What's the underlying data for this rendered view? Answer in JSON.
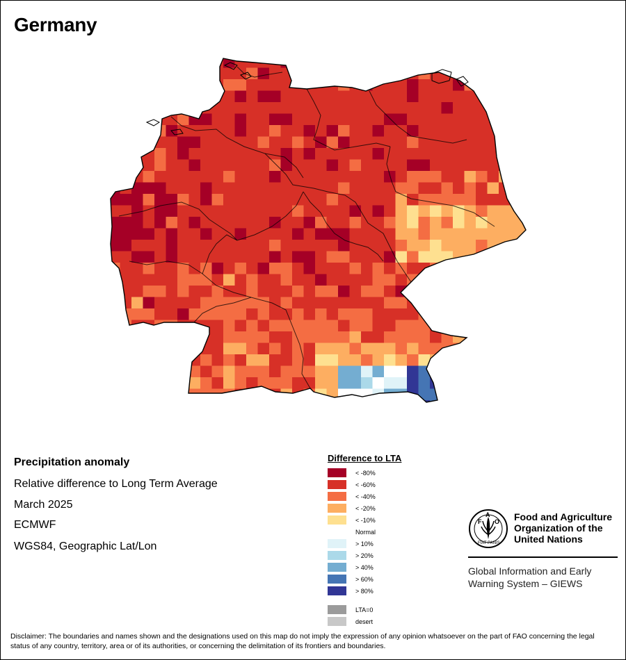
{
  "map_title": "Germany",
  "info": {
    "title": "Precipitation anomaly",
    "subtitle": "Relative difference to Long Term Average",
    "period": "March 2025",
    "model": "ECMWF",
    "projection": "WGS84, Geographic Lat/Lon"
  },
  "legend": {
    "title": "Difference to LTA",
    "classes": [
      {
        "label": "< -80%",
        "color": "#a50026"
      },
      {
        "label": "< -60%",
        "color": "#d73027"
      },
      {
        "label": "< -40%",
        "color": "#f46d43"
      },
      {
        "label": "< -20%",
        "color": "#fdae61"
      },
      {
        "label": "< -10%",
        "color": "#fee090"
      },
      {
        "label": "Normal",
        "color": "#ffffff"
      },
      {
        "label": "> 10%",
        "color": "#e0f3f8"
      },
      {
        "label": "> 20%",
        "color": "#abd9e9"
      },
      {
        "label": "> 40%",
        "color": "#74add1"
      },
      {
        "label": "> 60%",
        "color": "#4575b4"
      },
      {
        "label": "> 80%",
        "color": "#313695"
      }
    ],
    "extra": [
      {
        "label": "LTA=0",
        "color": "#9b9b9b"
      },
      {
        "label": "desert",
        "color": "#c8c8c8"
      }
    ]
  },
  "fao": {
    "emblem_letters": [
      "F",
      "A",
      "O"
    ],
    "emblem_motto": "FIAT PANIS",
    "name_lines": [
      "Food and Agriculture",
      "Organization of the",
      "United Nations"
    ],
    "giews_lines": [
      "Global Information and Early",
      "Warning System – GIEWS"
    ]
  },
  "disclaimer": "Disclaimer: The boundaries and names shown and the designations used on this map do not imply the expression of any opinion whatsoever on the part of FAO concerning the legal status of any country, territory, area or of its authorities, or concerning the delimitation of its frontiers and boundaries."
}
